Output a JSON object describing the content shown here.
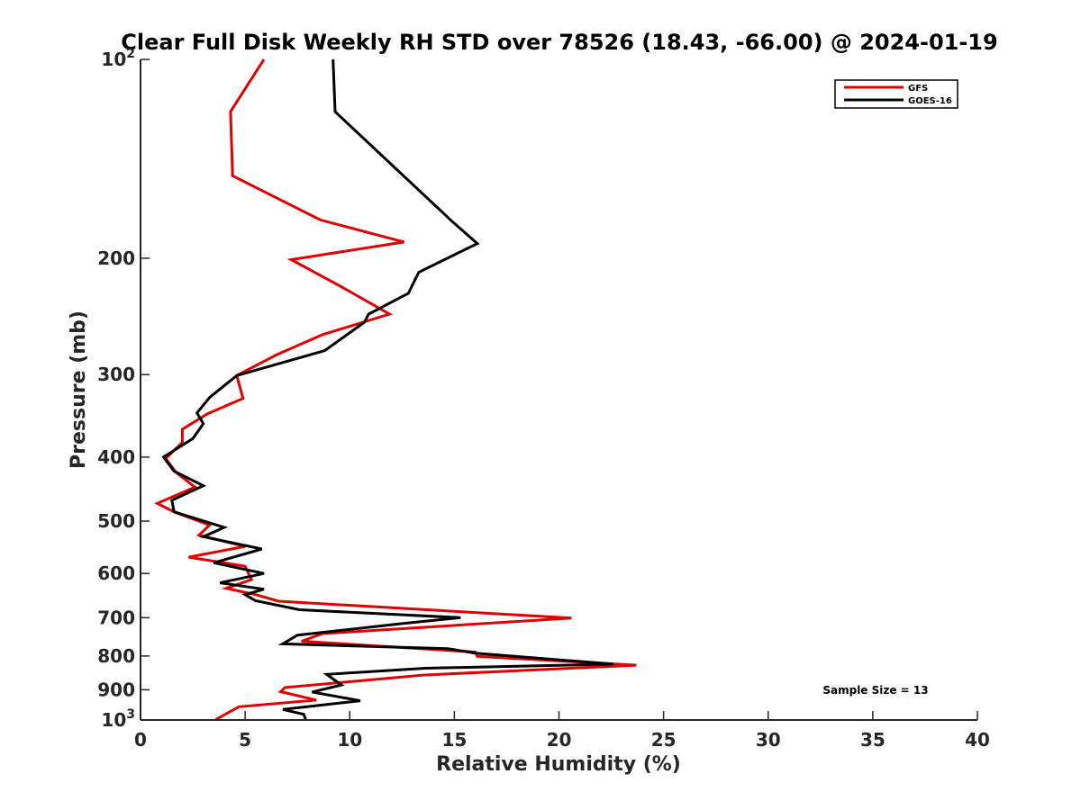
{
  "chart_data": {
    "type": "line",
    "title": "Clear Full Disk Weekly RH STD over 78526 (18.43, -66.00) @ 2024-01-19",
    "xlabel": "Relative Humidity (%)",
    "ylabel": "Pressure (mb)",
    "xlim": [
      0,
      40
    ],
    "ylim": [
      100,
      1000
    ],
    "y_scale": "log",
    "y_reversed": true,
    "x_ticks": [
      0,
      5,
      10,
      15,
      20,
      25,
      30,
      35,
      40
    ],
    "x_tick_labels": [
      "0",
      "5",
      "10",
      "15",
      "20",
      "25",
      "30",
      "35",
      "40"
    ],
    "y_ticks": [
      100,
      200,
      300,
      400,
      500,
      600,
      700,
      800,
      900,
      1000
    ],
    "y_tick_labels": [
      {
        "base": "10",
        "exp": "2"
      },
      {
        "base": "200",
        "exp": ""
      },
      {
        "base": "300",
        "exp": ""
      },
      {
        "base": "400",
        "exp": ""
      },
      {
        "base": "500",
        "exp": ""
      },
      {
        "base": "600",
        "exp": ""
      },
      {
        "base": "700",
        "exp": ""
      },
      {
        "base": "800",
        "exp": ""
      },
      {
        "base": "900",
        "exp": ""
      },
      {
        "base": "10",
        "exp": "3"
      }
    ],
    "grid": false,
    "legend_position": "top-right",
    "annotation": "Sample Size = 13",
    "series": [
      {
        "name": "GFS",
        "color": "#e00000",
        "points": [
          [
            5.9,
            100
          ],
          [
            4.3,
            120
          ],
          [
            4.4,
            150
          ],
          [
            8.6,
            175
          ],
          [
            12.6,
            189
          ],
          [
            7.2,
            201
          ],
          [
            9.5,
            220
          ],
          [
            11.9,
            243
          ],
          [
            8.7,
            261
          ],
          [
            6.5,
            280
          ],
          [
            4.6,
            301
          ],
          [
            4.9,
            326
          ],
          [
            3.2,
            344
          ],
          [
            2.0,
            363
          ],
          [
            2.0,
            380
          ],
          [
            1.2,
            402
          ],
          [
            1.7,
            422
          ],
          [
            2.6,
            444
          ],
          [
            0.8,
            470
          ],
          [
            1.6,
            484
          ],
          [
            3.3,
            507
          ],
          [
            2.8,
            525
          ],
          [
            5.0,
            546
          ],
          [
            2.3,
            567
          ],
          [
            5.0,
            585
          ],
          [
            5.3,
            613
          ],
          [
            4.1,
            632
          ],
          [
            5.5,
            646
          ],
          [
            6.6,
            661
          ],
          [
            20.6,
            701
          ],
          [
            8.7,
            740
          ],
          [
            7.7,
            760
          ],
          [
            16.0,
            789
          ],
          [
            16.1,
            801
          ],
          [
            23.7,
            826
          ],
          [
            13.5,
            855
          ],
          [
            6.9,
            893
          ],
          [
            6.7,
            906
          ],
          [
            8.4,
            933
          ],
          [
            4.7,
            955
          ],
          [
            3.6,
            998
          ]
        ]
      },
      {
        "name": "GOES-16",
        "color": "#000000",
        "points": [
          [
            9.2,
            100
          ],
          [
            9.3,
            120
          ],
          [
            14.9,
            176
          ],
          [
            16.1,
            190
          ],
          [
            13.3,
            210
          ],
          [
            12.8,
            226
          ],
          [
            10.9,
            243
          ],
          [
            10.7,
            250
          ],
          [
            8.8,
            276
          ],
          [
            4.6,
            301
          ],
          [
            3.3,
            325
          ],
          [
            2.7,
            343
          ],
          [
            3.0,
            356
          ],
          [
            2.5,
            375
          ],
          [
            1.1,
            400
          ],
          [
            1.6,
            420
          ],
          [
            3.0,
            442
          ],
          [
            1.5,
            465
          ],
          [
            1.6,
            484
          ],
          [
            4.0,
            511
          ],
          [
            3.0,
            528
          ],
          [
            5.8,
            551
          ],
          [
            3.5,
            578
          ],
          [
            5.9,
            600
          ],
          [
            3.8,
            620
          ],
          [
            5.9,
            634
          ],
          [
            5.0,
            646
          ],
          [
            5.5,
            660
          ],
          [
            7.6,
            681
          ],
          [
            15.3,
            700
          ],
          [
            12.6,
            714
          ],
          [
            7.5,
            744
          ],
          [
            6.8,
            767
          ],
          [
            14.7,
            780
          ],
          [
            16.0,
            792
          ],
          [
            22.6,
            823
          ],
          [
            13.6,
            835
          ],
          [
            8.9,
            853
          ],
          [
            9.6,
            885
          ],
          [
            8.2,
            907
          ],
          [
            10.5,
            935
          ],
          [
            6.8,
            964
          ],
          [
            7.8,
            980
          ],
          [
            7.9,
            1000
          ]
        ]
      }
    ]
  }
}
